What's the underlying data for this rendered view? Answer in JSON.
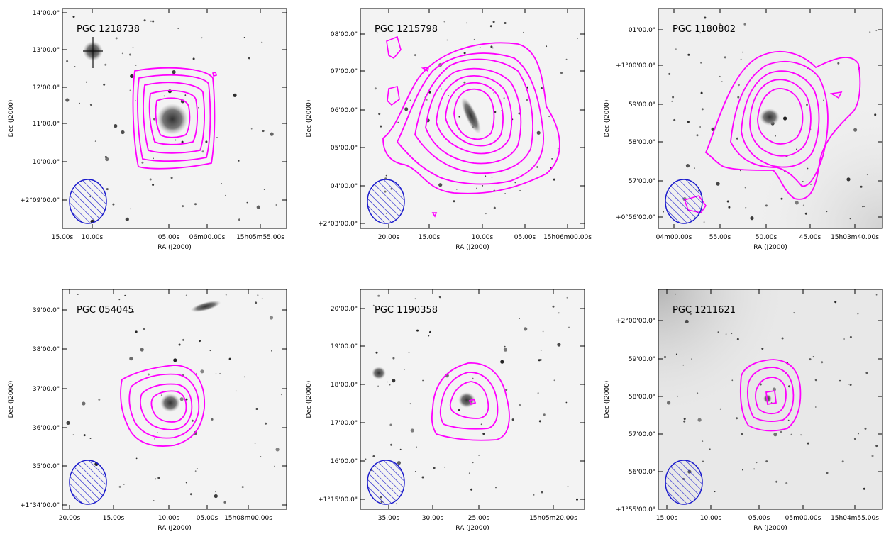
{
  "panels": [
    {
      "title": "PGC 1218738",
      "xlabel": "RA (J2000)",
      "ylabel": "Dec (J2000)",
      "xticks": [
        "15.00s",
        "10.00s",
        "05.00s",
        "06m00.00s",
        "15h05m55.00s"
      ],
      "yticks": [
        "14'00.0\"",
        "13'00.0\"",
        "12'00.0\"",
        "11'00.0\"",
        "10'00.0\"",
        "+2°09'00.0\""
      ],
      "background": "#f3f3f3"
    },
    {
      "title": "PGC 1215798",
      "xlabel": "RA (J2000)",
      "ylabel": "Dec (J2000)",
      "xticks": [
        "20.00s",
        "15.00s",
        "10.00s",
        "05.00s",
        "15h06m00.00s"
      ],
      "yticks": [
        "08'00.0\"",
        "07'00.0\"",
        "06'00.0\"",
        "05'00.0\"",
        "04'00.0\"",
        "+2°03'00.0\""
      ],
      "background": "#f3f3f3"
    },
    {
      "title": "PGC 1180802",
      "xlabel": "RA (J2000)",
      "ylabel": "Dec (J2000)",
      "xticks": [
        "04m00.00s",
        "55.00s",
        "50.00s",
        "45.00s",
        "15h03m40.00s"
      ],
      "yticks": [
        "01'00.0\"",
        "+1°00'00.0\"",
        "59'00.0\"",
        "58'00.0\"",
        "57'00.0\"",
        "+0°56'00.0\""
      ],
      "background": "#efefef"
    },
    {
      "title": "PGC 054045",
      "xlabel": "RA (J2000)",
      "ylabel": "Dec (J2000)",
      "xticks": [
        "20.00s",
        "15.00s",
        "10.00s",
        "05.00s",
        "15h08m00.00s"
      ],
      "yticks": [
        "39'00.0\"",
        "38'00.0\"",
        "37'00.0\"",
        "36'00.0\"",
        "35'00.0\"",
        "+1°34'00.0\""
      ],
      "background": "#f3f3f3"
    },
    {
      "title": "PGC 1190358",
      "xlabel": "RA (J2000)",
      "ylabel": "Dec (J2000)",
      "xticks": [
        "35.00s",
        "30.00s",
        "25.00s",
        "15h05m20.00s"
      ],
      "yticks": [
        "20'00.0\"",
        "19'00.0\"",
        "18'00.0\"",
        "17'00.0\"",
        "16'00.0\"",
        "+1°15'00.0\""
      ],
      "background": "#f3f3f3"
    },
    {
      "title": "PGC 1211621",
      "xlabel": "RA (J2000)",
      "ylabel": "Dec (J2000)",
      "xticks": [
        "15.00s",
        "10.00s",
        "05.00s",
        "05m00.00s",
        "15h04m55.00s"
      ],
      "yticks": [
        "+2°00'00.0\"",
        "59'00.0\"",
        "58'00.0\"",
        "57'00.0\"",
        "56'00.0\"",
        "+1°55'00.0\""
      ],
      "background": "#e8e8e8"
    }
  ],
  "colors": {
    "contour": "#ff00ff",
    "beam": "#1a1acc",
    "frame": "#000000",
    "galaxy": "#555555"
  }
}
